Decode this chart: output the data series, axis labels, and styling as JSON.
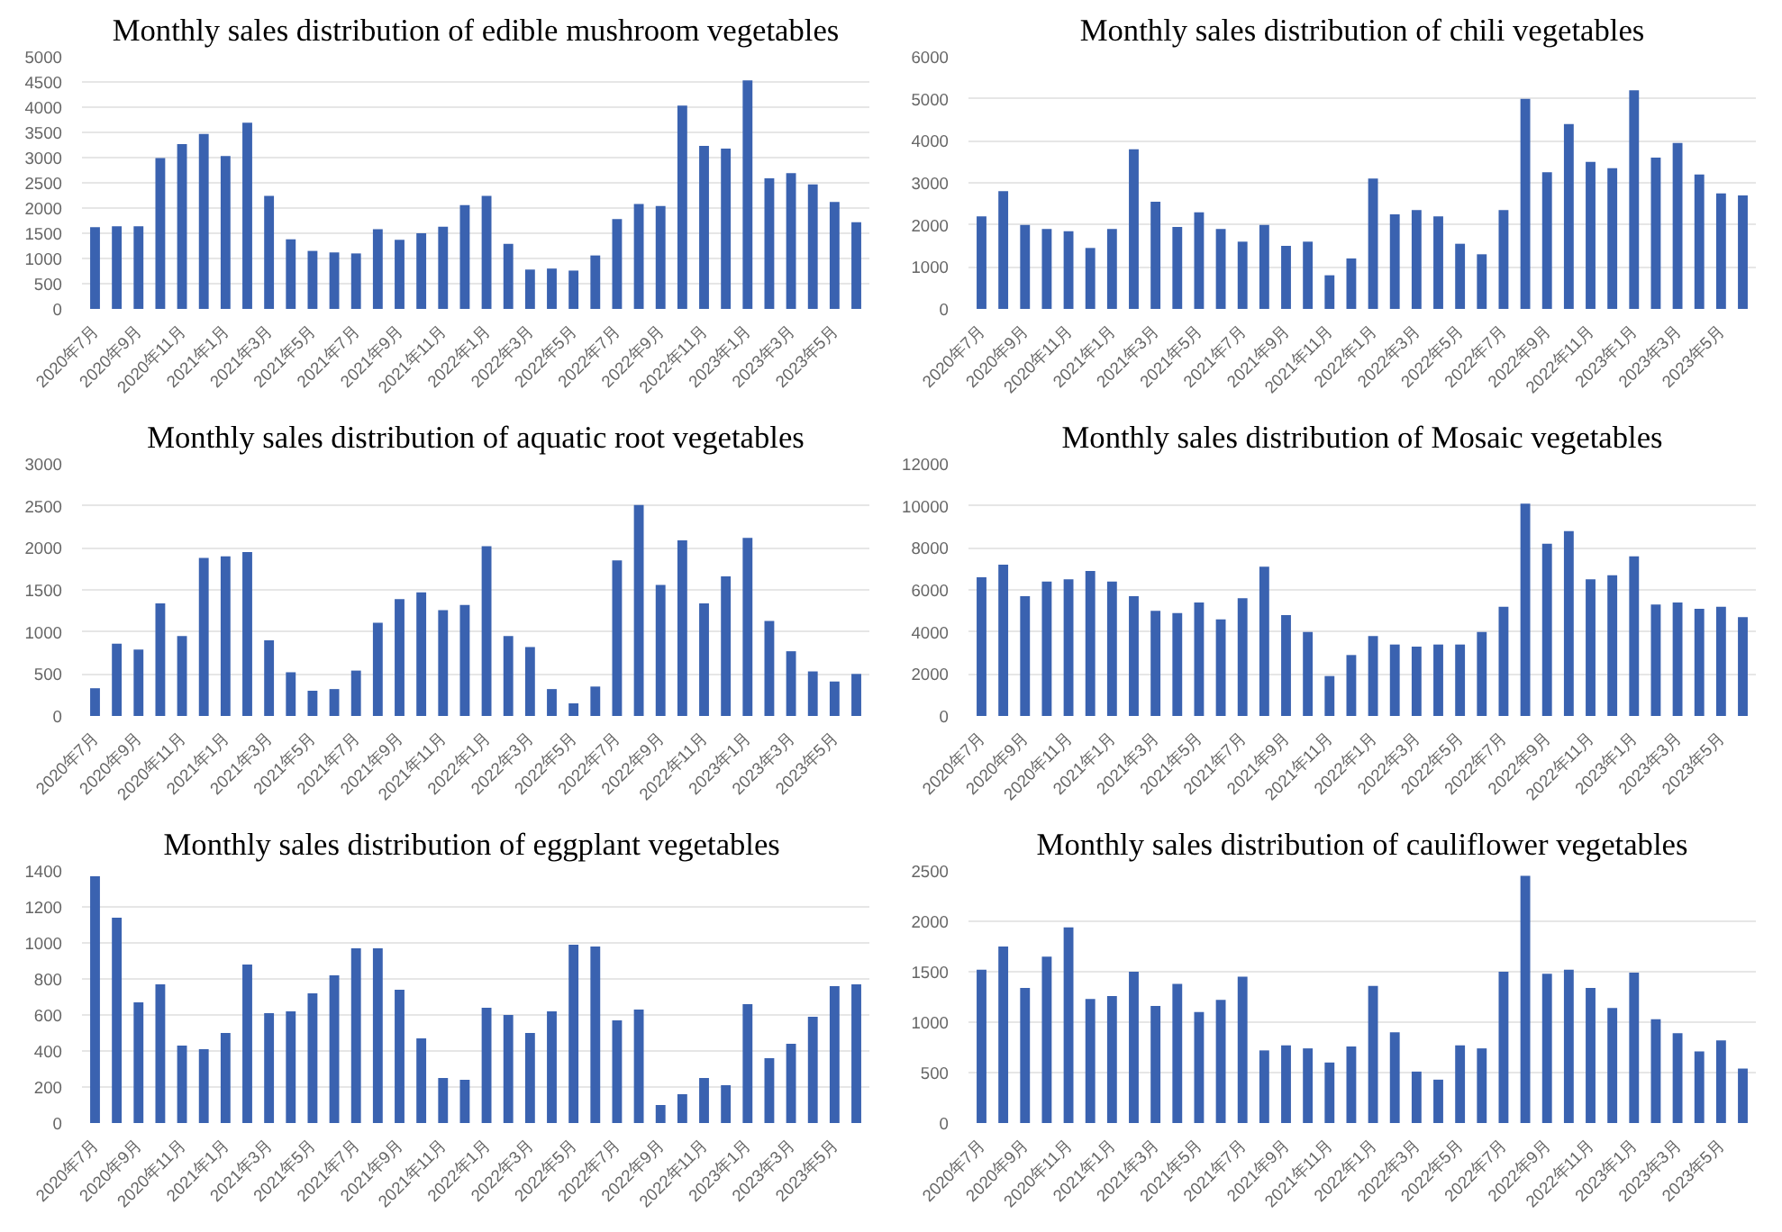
{
  "chart_data": [
    {
      "type": "bar",
      "title": "Monthly sales distribution of edible mushroom vegetables",
      "categories": [
        "2020年7月",
        null,
        "2020年9月",
        null,
        "2020年11月",
        null,
        "2021年1月",
        null,
        "2021年3月",
        null,
        "2021年5月",
        null,
        "2021年7月",
        null,
        "2021年9月",
        null,
        "2021年11月",
        null,
        "2022年1月",
        null,
        "2022年3月",
        null,
        "2022年5月",
        null,
        "2022年7月",
        null,
        "2022年9月",
        null,
        "2022年11月",
        null,
        "2023年1月",
        null,
        "2023年3月",
        null,
        "2023年5月",
        null
      ],
      "color": "#3a62b0",
      "ylim": [
        0,
        5000
      ],
      "yticks": [
        0,
        500,
        1000,
        1500,
        2000,
        2500,
        3000,
        3500,
        4000,
        4500,
        5000
      ],
      "grid": "y",
      "values": [
        1620,
        1640,
        1640,
        2990,
        3270,
        3470,
        3030,
        3690,
        2240,
        1380,
        1150,
        1120,
        1100,
        1580,
        1370,
        1500,
        1630,
        2060,
        2240,
        1290,
        780,
        800,
        760,
        1060,
        1780,
        2080,
        2040,
        4030,
        3230,
        3180,
        4530,
        2590,
        2690,
        2470,
        2120,
        1720
      ]
    },
    {
      "type": "bar",
      "title": "Monthly sales distribution of chili vegetables",
      "categories": [
        "2020年7月",
        null,
        "2020年9月",
        null,
        "2020年11月",
        null,
        "2021年1月",
        null,
        "2021年3月",
        null,
        "2021年5月",
        null,
        "2021年7月",
        null,
        "2021年9月",
        null,
        "2021年11月",
        null,
        "2022年1月",
        null,
        "2022年3月",
        null,
        "2022年5月",
        null,
        "2022年7月",
        null,
        "2022年9月",
        null,
        "2022年11月",
        null,
        "2023年1月",
        null,
        "2023年3月",
        null,
        "2023年5月",
        null
      ],
      "color": "#3a62b0",
      "ylim": [
        0,
        6000
      ],
      "yticks": [
        0,
        1000,
        2000,
        3000,
        4000,
        5000,
        6000
      ],
      "grid": "y",
      "values": [
        2200,
        2800,
        2000,
        1900,
        1850,
        1450,
        1900,
        3800,
        2550,
        1950,
        2300,
        1900,
        1600,
        2000,
        1500,
        1600,
        800,
        1200,
        3100,
        2250,
        2350,
        2200,
        1550,
        1300,
        2350,
        5000,
        3250,
        4400,
        3500,
        3350,
        5200,
        3600,
        3950,
        3200,
        2750,
        2700
      ]
    },
    {
      "type": "bar",
      "title": "Monthly sales distribution of aquatic root vegetables",
      "categories": [
        "2020年7月",
        null,
        "2020年9月",
        null,
        "2020年11月",
        null,
        "2021年1月",
        null,
        "2021年3月",
        null,
        "2021年5月",
        null,
        "2021年7月",
        null,
        "2021年9月",
        null,
        "2021年11月",
        null,
        "2022年1月",
        null,
        "2022年3月",
        null,
        "2022年5月",
        null,
        "2022年7月",
        null,
        "2022年9月",
        null,
        "2022年11月",
        null,
        "2023年1月",
        null,
        "2023年3月",
        null,
        "2023年5月",
        null
      ],
      "color": "#3a62b0",
      "ylim": [
        0,
        3000
      ],
      "yticks": [
        0,
        500,
        1000,
        1500,
        2000,
        2500,
        3000
      ],
      "grid": "y",
      "values": [
        330,
        860,
        790,
        1340,
        950,
        1880,
        1900,
        1950,
        900,
        520,
        300,
        320,
        540,
        1110,
        1390,
        1470,
        1260,
        1320,
        2020,
        950,
        820,
        320,
        150,
        350,
        1850,
        2510,
        1560,
        2090,
        1340,
        1660,
        2120,
        1130,
        770,
        530,
        410,
        500
      ]
    },
    {
      "type": "bar",
      "title": "Monthly sales distribution of Mosaic vegetables",
      "categories": [
        "2020年7月",
        null,
        "2020年9月",
        null,
        "2020年11月",
        null,
        "2021年1月",
        null,
        "2021年3月",
        null,
        "2021年5月",
        null,
        "2021年7月",
        null,
        "2021年9月",
        null,
        "2021年11月",
        null,
        "2022年1月",
        null,
        "2022年3月",
        null,
        "2022年5月",
        null,
        "2022年7月",
        null,
        "2022年9月",
        null,
        "2022年11月",
        null,
        "2023年1月",
        null,
        "2023年3月",
        null,
        "2023年5月",
        null
      ],
      "color": "#3a62b0",
      "ylim": [
        0,
        12000
      ],
      "yticks": [
        0,
        2000,
        4000,
        6000,
        8000,
        10000,
        12000
      ],
      "grid": "y",
      "values": [
        6600,
        7200,
        5700,
        6400,
        6500,
        6900,
        6400,
        5700,
        5000,
        4900,
        5400,
        4600,
        5600,
        7100,
        4800,
        4000,
        1900,
        2900,
        3800,
        3400,
        3300,
        3400,
        3400,
        4000,
        5200,
        10100,
        8200,
        8800,
        6500,
        6700,
        7600,
        5300,
        5400,
        5100,
        5200,
        4700
      ]
    },
    {
      "type": "bar",
      "title": "Monthly sales distribution of eggplant  vegetables",
      "categories": [
        "2020年7月",
        null,
        "2020年9月",
        null,
        "2020年11月",
        null,
        "2021年1月",
        null,
        "2021年3月",
        null,
        "2021年5月",
        null,
        "2021年7月",
        null,
        "2021年9月",
        null,
        "2021年11月",
        null,
        "2022年1月",
        null,
        "2022年3月",
        null,
        "2022年5月",
        null,
        "2022年7月",
        null,
        "2022年9月",
        null,
        "2022年11月",
        null,
        "2023年1月",
        null,
        "2023年3月",
        null,
        "2023年5月",
        null
      ],
      "color": "#3a62b0",
      "ylim": [
        0,
        1400
      ],
      "yticks": [
        0,
        200,
        400,
        600,
        800,
        1000,
        1200,
        1400
      ],
      "grid": "y",
      "values": [
        1370,
        1140,
        670,
        770,
        430,
        410,
        500,
        880,
        610,
        620,
        720,
        820,
        970,
        970,
        740,
        470,
        250,
        240,
        640,
        600,
        500,
        620,
        990,
        980,
        570,
        630,
        100,
        160,
        250,
        210,
        660,
        360,
        440,
        590,
        760,
        770
      ]
    },
    {
      "type": "bar",
      "title": "Monthly sales distribution of cauliflower vegetables",
      "categories": [
        "2020年7月",
        null,
        "2020年9月",
        null,
        "2020年11月",
        null,
        "2021年1月",
        null,
        "2021年3月",
        null,
        "2021年5月",
        null,
        "2021年7月",
        null,
        "2021年9月",
        null,
        "2021年11月",
        null,
        "2022年1月",
        null,
        "2022年3月",
        null,
        "2022年5月",
        null,
        "2022年7月",
        null,
        "2022年9月",
        null,
        "2022年11月",
        null,
        "2023年1月",
        null,
        "2023年3月",
        null,
        "2023年5月",
        null
      ],
      "color": "#3a62b0",
      "ylim": [
        0,
        2500
      ],
      "yticks": [
        0,
        500,
        1000,
        1500,
        2000,
        2500
      ],
      "grid": "y",
      "values": [
        1520,
        1750,
        1340,
        1650,
        1940,
        1230,
        1260,
        1500,
        1160,
        1380,
        1100,
        1220,
        1450,
        720,
        770,
        740,
        600,
        760,
        1360,
        900,
        510,
        430,
        770,
        740,
        1500,
        2450,
        1480,
        1520,
        1340,
        1140,
        1490,
        1030,
        890,
        710,
        820,
        540
      ]
    }
  ]
}
